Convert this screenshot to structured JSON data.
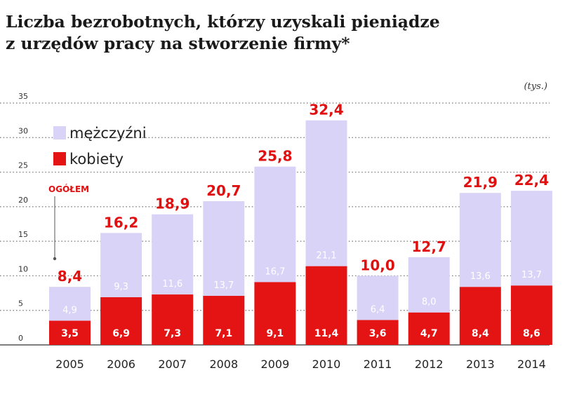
{
  "title": {
    "line1": "Liczba bezrobotnych, którzy uzyskali pieniądze",
    "line2": "z urzędów pracy na stworzenie firmy*"
  },
  "colors": {
    "men": "#d9d4f7",
    "women": "#e51414",
    "totals": "#e01010"
  },
  "chart_data": {
    "type": "bar",
    "stacked": true,
    "unit": "(tys.)",
    "ylim": [
      0,
      35
    ],
    "yticks": [
      0,
      5,
      10,
      15,
      20,
      25,
      30,
      35
    ],
    "grid": true,
    "categories": [
      "2005",
      "2006",
      "2007",
      "2008",
      "2009",
      "2010",
      "2011",
      "2012",
      "2013",
      "2014"
    ],
    "series": [
      {
        "name": "kobiety",
        "values": [
          3.5,
          6.9,
          7.3,
          7.1,
          9.1,
          11.4,
          3.6,
          4.7,
          8.4,
          8.6
        ],
        "labels": [
          "3,5",
          "6,9",
          "7,3",
          "7,1",
          "9,1",
          "11,4",
          "3,6",
          "4,7",
          "8,4",
          "8,6"
        ]
      },
      {
        "name": "mężczyźni",
        "values": [
          4.9,
          9.3,
          11.6,
          13.7,
          16.7,
          21.1,
          6.4,
          8.0,
          13.6,
          13.7
        ],
        "labels": [
          "4,9",
          "9,3",
          "11,6",
          "13,7",
          "16,7",
          "21,1",
          "6,4",
          "8,0",
          "13,6",
          "13,7"
        ]
      }
    ],
    "totals": [
      8.4,
      16.2,
      18.9,
      20.7,
      25.8,
      32.4,
      10.0,
      12.7,
      21.9,
      22.4
    ],
    "total_labels": [
      "8,4",
      "16,2",
      "18,9",
      "20,7",
      "25,8",
      "32,4",
      "10,0",
      "12,7",
      "21,9",
      "22,4"
    ],
    "annotation": "OGÓŁEM",
    "legend": {
      "position": "top-left",
      "items": [
        "mężczyźni",
        "kobiety"
      ]
    }
  }
}
